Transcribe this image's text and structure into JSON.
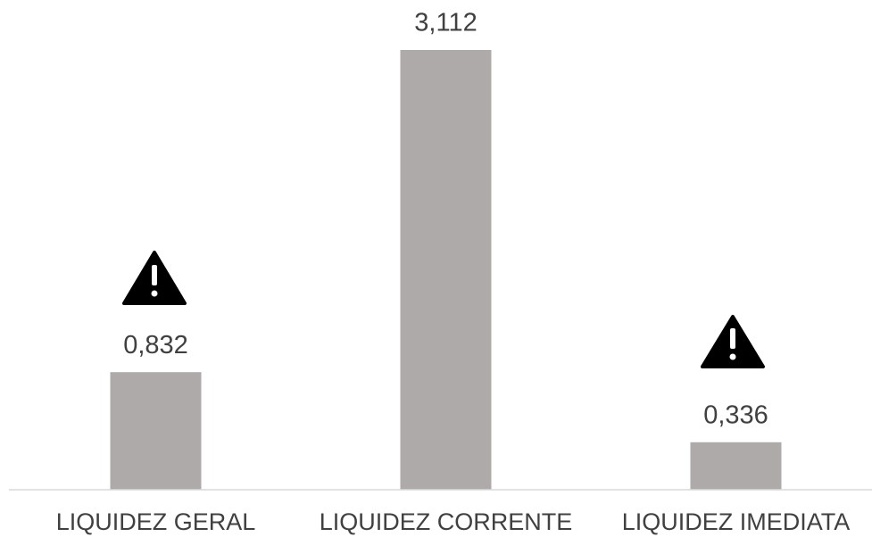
{
  "chart_data": {
    "type": "bar",
    "categories": [
      "LIQUIDEZ GERAL",
      "LIQUIDEZ CORRENTE",
      "LIQUIDEZ IMEDIATA"
    ],
    "values": [
      0.832,
      3.112,
      0.336
    ],
    "value_labels": [
      "0,832",
      "3,112",
      "0,336"
    ],
    "color": "#aeaaaa"
  }
}
